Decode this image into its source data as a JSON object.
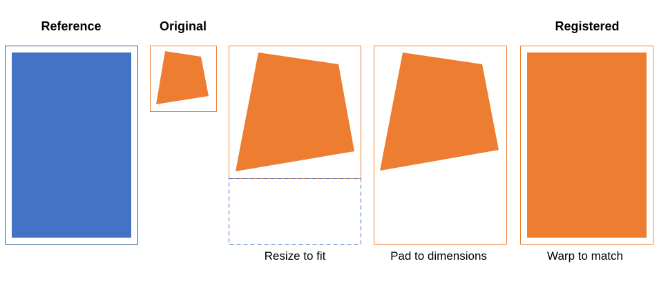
{
  "panels": {
    "reference": {
      "title": "Reference"
    },
    "original": {
      "title": "Original"
    },
    "resize": {
      "caption": "Resize to fit"
    },
    "pad": {
      "caption": "Pad to dimensions"
    },
    "registered": {
      "title": "Registered",
      "caption": "Warp to match"
    }
  },
  "colors": {
    "blue_fill": "#4472C4",
    "blue_border": "#2E5597",
    "orange_fill": "#ED7D31",
    "orange_border": "#ED7D31",
    "dashed_border": "#4472C4"
  }
}
